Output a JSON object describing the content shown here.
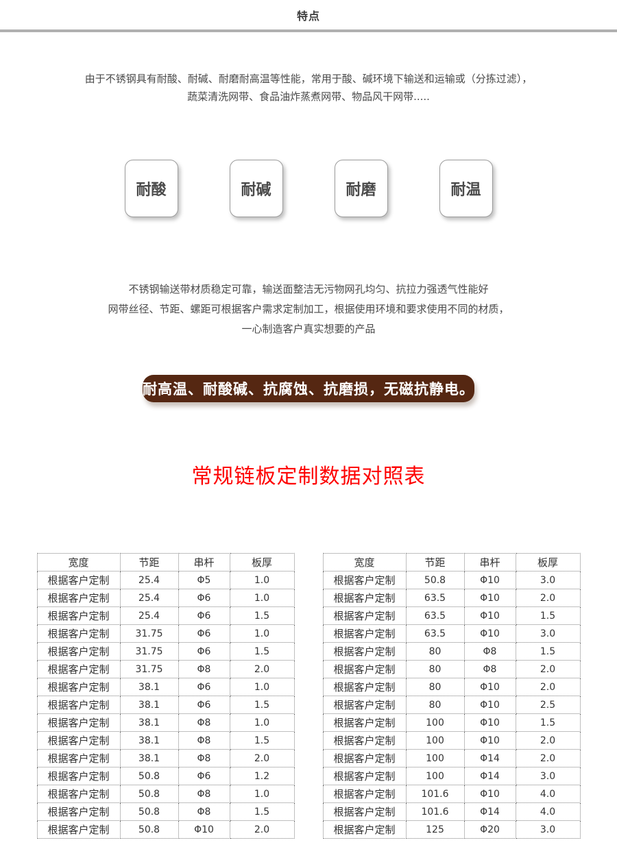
{
  "page": {
    "title": "特点"
  },
  "colors": {
    "divider": "#b0b0b0",
    "banner_bg": "#552712",
    "banner_text": "#ffffff",
    "table_title": "#fe0202",
    "body_text": "#4a4a4a",
    "table_border": "#7f7f7f"
  },
  "intro": {
    "line1": "由于不锈钢具有耐酸、耐碱、耐磨耐高温等性能，常用于酸、碱环境下输送和运输或（分拣过滤），",
    "line2": "蔬菜清洗网带、食品油炸蒸煮网带、物品风干网带....."
  },
  "badges": [
    {
      "label": "耐酸"
    },
    {
      "label": "耐碱"
    },
    {
      "label": "耐磨"
    },
    {
      "label": "耐温"
    }
  ],
  "description": {
    "line1": "不锈钢输送带材质稳定可靠，输送面整洁无污物网孔均匀、抗拉力强透气性能好",
    "line2": "网带丝径、节距、螺距可根据客户需求定制加工，根据使用环境和要求使用不同的材质，",
    "line3": "一心制造客户真实想要的产品"
  },
  "banner": {
    "text": "耐高温、耐酸碱、抗腐蚀、抗磨损，无磁抗静电。"
  },
  "table_title": "常规链板定制数据对照表",
  "chart_data": {
    "type": "table",
    "title": "常规链板定制数据对照表",
    "headers": [
      "宽度",
      "节距",
      "串杆",
      "板厚"
    ],
    "left_rows": [
      [
        "根据客户定制",
        "25.4",
        "Φ5",
        "1.0"
      ],
      [
        "根据客户定制",
        "25.4",
        "Φ6",
        "1.0"
      ],
      [
        "根据客户定制",
        "25.4",
        "Φ6",
        "1.5"
      ],
      [
        "根据客户定制",
        "31.75",
        "Φ6",
        "1.0"
      ],
      [
        "根据客户定制",
        "31.75",
        "Φ6",
        "1.5"
      ],
      [
        "根据客户定制",
        "31.75",
        "Φ8",
        "2.0"
      ],
      [
        "根据客户定制",
        "38.1",
        "Φ6",
        "1.0"
      ],
      [
        "根据客户定制",
        "38.1",
        "Φ6",
        "1.5"
      ],
      [
        "根据客户定制",
        "38.1",
        "Φ8",
        "1.0"
      ],
      [
        "根据客户定制",
        "38.1",
        "Φ8",
        "1.5"
      ],
      [
        "根据客户定制",
        "38.1",
        "Φ8",
        "2.0"
      ],
      [
        "根据客户定制",
        "50.8",
        "Φ6",
        "1.2"
      ],
      [
        "根据客户定制",
        "50.8",
        "Φ8",
        "1.0"
      ],
      [
        "根据客户定制",
        "50.8",
        "Φ8",
        "1.5"
      ],
      [
        "根据客户定制",
        "50.8",
        "Φ10",
        "2.0"
      ]
    ],
    "right_rows": [
      [
        "根据客户定制",
        "50.8",
        "Φ10",
        "3.0"
      ],
      [
        "根据客户定制",
        "63.5",
        "Φ10",
        "2.0"
      ],
      [
        "根据客户定制",
        "63.5",
        "Φ10",
        "1.5"
      ],
      [
        "根据客户定制",
        "63.5",
        "Φ10",
        "3.0"
      ],
      [
        "根据客户定制",
        "80",
        "Φ8",
        "1.5"
      ],
      [
        "根据客户定制",
        "80",
        "Φ8",
        "2.0"
      ],
      [
        "根据客户定制",
        "80",
        "Φ10",
        "2.0"
      ],
      [
        "根据客户定制",
        "80",
        "Φ10",
        "2.5"
      ],
      [
        "根据客户定制",
        "100",
        "Φ10",
        "1.5"
      ],
      [
        "根据客户定制",
        "100",
        "Φ10",
        "2.0"
      ],
      [
        "根据客户定制",
        "100",
        "Φ14",
        "2.0"
      ],
      [
        "根据客户定制",
        "100",
        "Φ14",
        "3.0"
      ],
      [
        "根据客户定制",
        "101.6",
        "Φ10",
        "4.0"
      ],
      [
        "根据客户定制",
        "101.6",
        "Φ14",
        "4.0"
      ],
      [
        "根据客户定制",
        "125",
        "Φ20",
        "3.0"
      ]
    ]
  }
}
